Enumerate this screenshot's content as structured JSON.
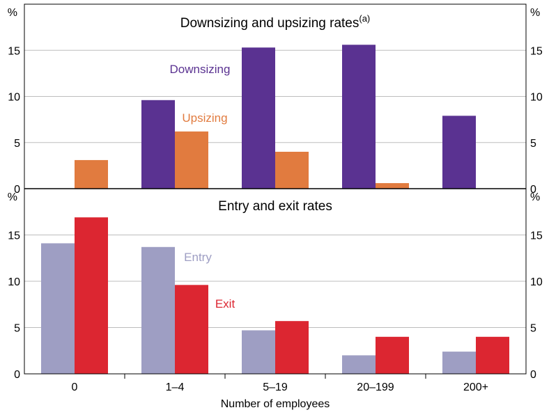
{
  "chart_data": [
    {
      "type": "bar",
      "title": "Downsizing and upsizing rates",
      "title_superscript": "(a)",
      "unit_label": "%",
      "categories": [
        "0",
        "1–4",
        "5–19",
        "20–199",
        "200+"
      ],
      "yticks": [
        "0",
        "5",
        "10",
        "15"
      ],
      "ylim": [
        0,
        20
      ],
      "grid": true,
      "series": [
        {
          "name": "Downsizing",
          "color": "#5a3291",
          "values": [
            null,
            9.6,
            15.3,
            15.6,
            7.9
          ]
        },
        {
          "name": "Upsizing",
          "color": "#e17b3f",
          "values": [
            3.1,
            6.2,
            4.0,
            0.6,
            null
          ]
        }
      ]
    },
    {
      "type": "bar",
      "title": "Entry and exit rates",
      "unit_label": "%",
      "categories": [
        "0",
        "1–4",
        "5–19",
        "20–199",
        "200+"
      ],
      "xlabel": "Number of employees",
      "yticks": [
        "0",
        "5",
        "10",
        "15"
      ],
      "ylim": [
        0,
        20
      ],
      "grid": true,
      "series": [
        {
          "name": "Entry",
          "color": "#9e9ec3",
          "values": [
            14.1,
            13.7,
            4.7,
            2.0,
            2.4
          ]
        },
        {
          "name": "Exit",
          "color": "#dc2631",
          "values": [
            16.9,
            9.6,
            5.7,
            4.0,
            4.0
          ]
        }
      ]
    }
  ]
}
